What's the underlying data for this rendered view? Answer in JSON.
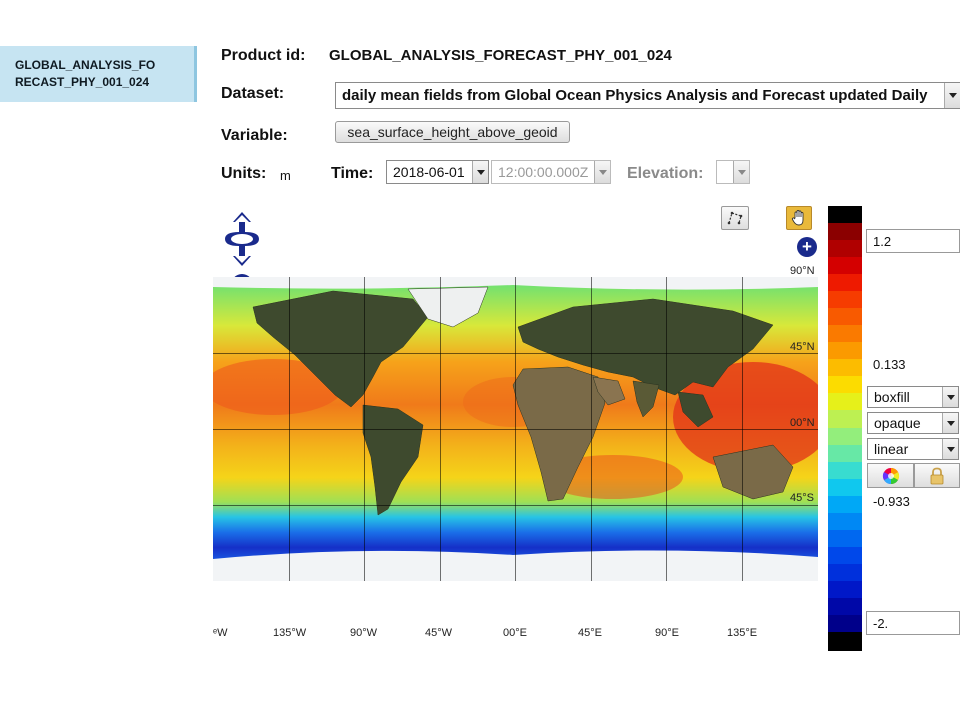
{
  "sidebar": {
    "tab_line1": "GLOBAL_ANALYSIS_FO",
    "tab_line2": "RECAST_PHY_001_024"
  },
  "form": {
    "product_label": "Product id:",
    "product_value": "GLOBAL_ANALYSIS_FORECAST_PHY_001_024",
    "dataset_label": "Dataset:",
    "dataset_value": "daily mean fields from Global Ocean Physics Analysis and Forecast updated Daily",
    "variable_label": "Variable:",
    "variable_value": "sea_surface_height_above_geoid",
    "units_label": "Units:",
    "units_value": "m",
    "time_label": "Time:",
    "time_date": "2018-06-01",
    "time_clock": "12:00:00.000Z",
    "elevation_label": "Elevation:",
    "elevation_value": ""
  },
  "map": {
    "lat_labels": [
      "90°N",
      "45°N",
      "00°N",
      "45°S"
    ],
    "lon_labels": [
      "ᵉW",
      "135°W",
      "90°W",
      "45°W",
      "00°E",
      "45°E",
      "90°E",
      "135°E"
    ]
  },
  "legend": {
    "max": "1.2",
    "mid_high": "0.133",
    "mid_low": "-0.933",
    "min": "-2.",
    "style_options": {
      "style": "boxfill",
      "opacity": "opaque",
      "scale": "linear"
    }
  },
  "icons": {
    "pan": "pan-arrows-icon",
    "zoom_in": "zoom-in-icon",
    "globe": "globe-icon",
    "zoom_out": "zoom-out-icon",
    "measure": "measure-icon",
    "hand": "hand-icon",
    "add": "add-icon",
    "palette": "color-wheel-icon",
    "lock": "lock-icon"
  },
  "colors": {
    "sidebar_tab": "#c6e4f2",
    "map_control": "#1a2a8c",
    "hand_button": "#e9b93a"
  }
}
